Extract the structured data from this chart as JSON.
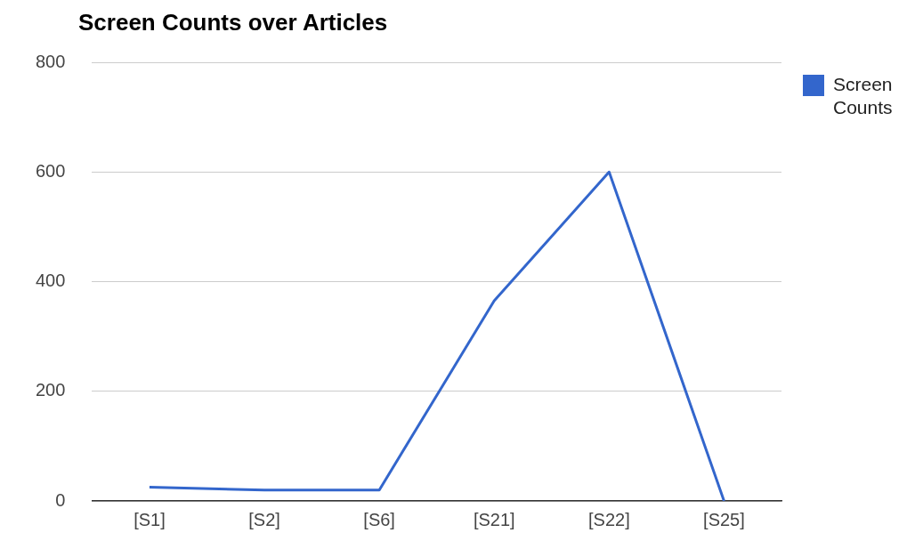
{
  "chart_data": {
    "type": "line",
    "title": "Screen Counts over Articles",
    "categories": [
      "[S1]",
      "[S2]",
      "[S6]",
      "[S21]",
      "[S22]",
      "[S25]"
    ],
    "series": [
      {
        "name": "Screen Counts",
        "color": "#3366cc",
        "values": [
          25,
          20,
          20,
          365,
          600,
          0
        ]
      }
    ],
    "ylim": [
      0,
      800
    ],
    "yticks": [
      0,
      200,
      400,
      600,
      800
    ],
    "grid": "y",
    "legend": "top right",
    "marker": "none",
    "line_style": "solid"
  }
}
